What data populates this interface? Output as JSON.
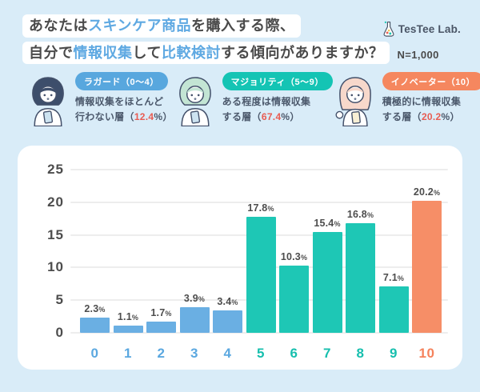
{
  "colors": {
    "background": "#D9ECF8",
    "card": "#FFFFFF",
    "title_dark": "#4A4A4A",
    "accent_blue": "#5FA9E2",
    "body_text": "#4B586B",
    "percent_red": "#E85C52",
    "gridline": "#EDEDED"
  },
  "header": {
    "line1": {
      "a": "あなたは",
      "b": "スキンケア商品",
      "c": "を購入する際、"
    },
    "line2": {
      "a": "自分で",
      "b": "情報収集",
      "c": "して",
      "d": "比較検討",
      "e": "する傾向がありますか？"
    },
    "sample": "N=1,000",
    "logo": "TesTee Lab."
  },
  "personas": [
    {
      "badge": "ラガード（0〜4）",
      "badge_color": "#58A7DE",
      "hair_color": "#3D4E6B",
      "phone_color": "#CDE3F0",
      "desc1": "情報収集をほとんど",
      "desc2_pre": "行わない層（",
      "pct": "12.4",
      "desc2_post": "%）"
    },
    {
      "badge": "マジョリティ（5〜9）",
      "badge_color": "#14C4B4",
      "hair_color": "#C3E5D4",
      "phone_color": "#CDE3F0",
      "desc1": "ある程度は情報収集",
      "desc2_pre": "する層（",
      "pct": "67.4",
      "desc2_post": "%）"
    },
    {
      "badge": "イノベーター（10）",
      "badge_color": "#F5875F",
      "hair_color": "#F7D8CB",
      "phone_color": "#F8EFD4",
      "desc1": "積極的に情報収集",
      "desc2_pre": "する層（",
      "pct": "20.2",
      "desc2_post": "%）"
    }
  ],
  "chart_data": {
    "type": "bar",
    "title": "あなたはスキンケア商品を購入する際、自分で情報収集して比較検討する傾向がありますか？",
    "sample_size": "N=1,000",
    "categories": [
      "0",
      "1",
      "2",
      "3",
      "4",
      "5",
      "6",
      "7",
      "8",
      "9",
      "10"
    ],
    "values": [
      2.3,
      1.1,
      1.7,
      3.9,
      3.4,
      17.8,
      10.3,
      15.4,
      16.8,
      7.1,
      20.2
    ],
    "unit": "%",
    "xlabel": "",
    "ylabel": "",
    "ylim": [
      0,
      25
    ],
    "yticks": [
      0,
      5,
      10,
      15,
      20,
      25
    ],
    "grid": true,
    "legend_position": "above-chart",
    "bar_colors": [
      "#6AAFE3",
      "#6AAFE3",
      "#6AAFE3",
      "#6AAFE3",
      "#6AAFE3",
      "#1EC7B5",
      "#1EC7B5",
      "#1EC7B5",
      "#1EC7B5",
      "#1EC7B5",
      "#F68E67"
    ],
    "label_colors": [
      "#5BA8E0",
      "#5BA8E0",
      "#5BA8E0",
      "#5BA8E0",
      "#5BA8E0",
      "#17BFAE",
      "#17BFAE",
      "#17BFAE",
      "#17BFAE",
      "#17BFAE",
      "#F5825C"
    ]
  }
}
